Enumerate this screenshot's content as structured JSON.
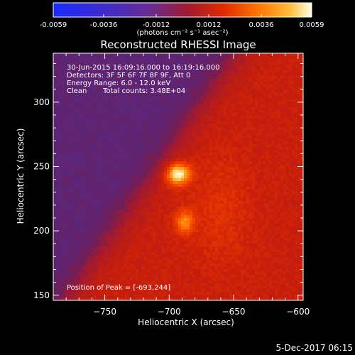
{
  "colorbar": {
    "tick_labels": [
      "-0.0059",
      "-0.0036",
      "-0.0012",
      "0.0012",
      "0.0036",
      "0.0059"
    ],
    "tick_values": [
      -0.0059,
      -0.0036,
      -0.0012,
      0.0012,
      0.0036,
      0.0059
    ],
    "range": [
      -0.0059,
      0.0059
    ],
    "units_label": "(photons cm⁻² s⁻¹ asec⁻²)"
  },
  "chart_data": {
    "type": "heatmap",
    "title": "Reconstructed RHESSI Image",
    "xlabel": "Heliocentric X (arcsec)",
    "ylabel": "Heliocentric Y (arcsec)",
    "xlim": [
      -790,
      -596
    ],
    "ylim": [
      146,
      338
    ],
    "x_ticks": [
      -750,
      -700,
      -650,
      -600
    ],
    "x_tick_labels": [
      "−750",
      "−700",
      "−650",
      "−600"
    ],
    "y_ticks": [
      150,
      200,
      250,
      300
    ],
    "y_tick_labels": [
      "150",
      "200",
      "250",
      "300"
    ],
    "colors": {
      "low": "#1a2bff",
      "mid_low": "#5a2b9a",
      "mid": "#b31a1a",
      "mid_high": "#ff5a00",
      "high": "#ffffe0"
    },
    "peak": [
      -693,
      244
    ],
    "annotations": {
      "time": "30-Jun-2015 16:09:16.000 to 16:19:16.000",
      "detectors": "Detectors: 3F 5F 6F 7F 8F 9F, Att 0",
      "energy": "Energy Range: 6.0 - 12.0 keV",
      "clean_label": "Clean",
      "counts": "Total counts: 3.48E+04",
      "peak_label": "Position of Peak = [-693,244]"
    }
  },
  "footer_date": "5-Dec-2017 06:15"
}
